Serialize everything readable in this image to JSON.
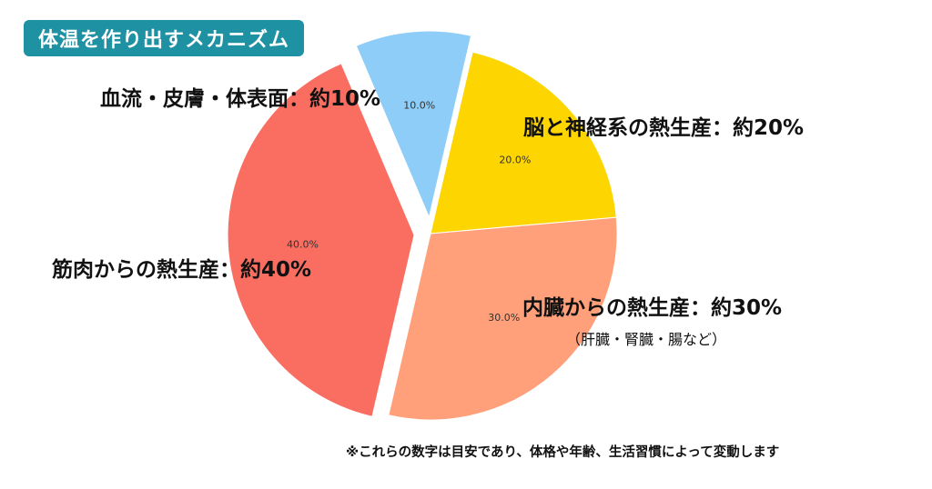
{
  "title": "体温を作り出すメカニズム",
  "callouts": {
    "blood": "血流・皮膚・体表面：約10%",
    "brain": "脳と神経系の熱生産：約20%",
    "muscle": "筋肉からの熱生産：約40%",
    "organs": "内臓からの熱生産：約30%",
    "organs_detail": "（肝臓・腎臓・腸など）"
  },
  "footnote": "※これらの数字は目安であり、体格や年齢、生活習慣によって変動します",
  "chart_data": {
    "type": "pie",
    "categories": [
      "脳と神経系の熱生産",
      "内臓からの熱生産",
      "筋肉からの熱生産",
      "血流・皮膚・体表面"
    ],
    "values": [
      20,
      30,
      40,
      10
    ],
    "data_labels": [
      "20.0%",
      "30.0%",
      "40.0%",
      "10.0%"
    ],
    "colors": [
      "#fdd500",
      "#ffa07a",
      "#fa6e62",
      "#8dcdf8"
    ],
    "exploded": [
      false,
      false,
      true,
      true
    ],
    "start_angle_deg": 77,
    "direction": "clockwise"
  }
}
